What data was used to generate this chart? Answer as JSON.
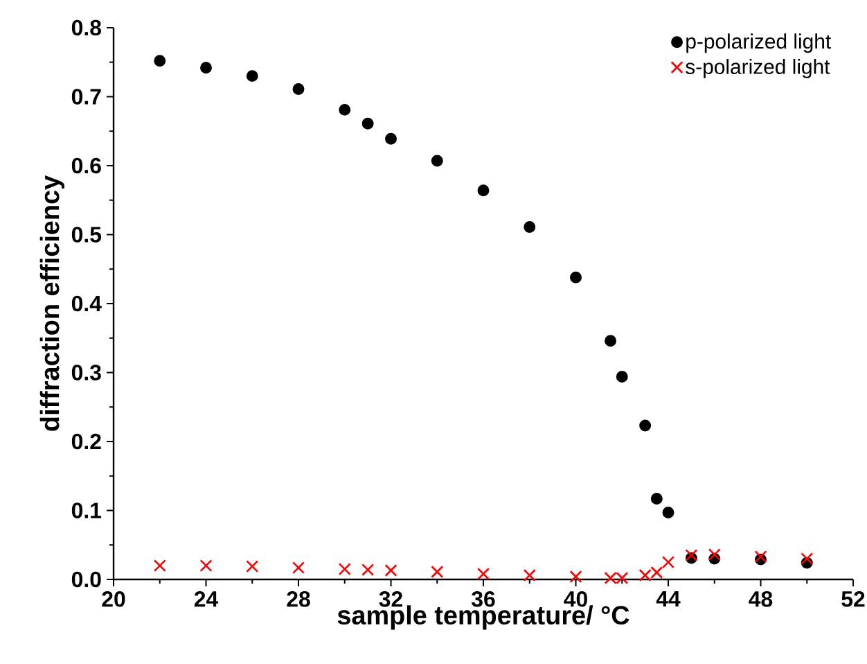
{
  "chart_data": {
    "type": "scatter",
    "xlabel": "sample temperature/ °C",
    "ylabel": "diffraction efficiency",
    "x": [
      22,
      24,
      26,
      28,
      30,
      31,
      32,
      34,
      36,
      38,
      40,
      41.5,
      42,
      43,
      43.5,
      44,
      45,
      46,
      48,
      50
    ],
    "series": [
      {
        "name": "p-polarized light",
        "color": "#000000",
        "marker": "circle",
        "values": [
          0.752,
          0.742,
          0.73,
          0.711,
          0.681,
          0.661,
          0.639,
          0.607,
          0.564,
          0.511,
          0.438,
          0.346,
          0.294,
          0.223,
          0.117,
          0.097,
          0.031,
          0.03,
          0.029,
          0.024
        ]
      },
      {
        "name": "s-polarized light",
        "color": "#ff0000",
        "marker": "cross",
        "values": [
          0.02,
          0.02,
          0.019,
          0.017,
          0.015,
          0.014,
          0.013,
          0.011,
          0.008,
          0.006,
          0.004,
          0.002,
          0.002,
          0.006,
          0.01,
          0.025,
          0.035,
          0.036,
          0.033,
          0.03
        ]
      }
    ],
    "xlim": [
      20,
      52
    ],
    "ylim": [
      0,
      0.8
    ],
    "xticks": [
      20,
      24,
      28,
      32,
      36,
      40,
      44,
      48,
      52
    ],
    "yticks": [
      {
        "value": 0,
        "label": "0.0"
      },
      0.1,
      0.2,
      0.3,
      0.4,
      0.5,
      0.6,
      0.7,
      0.8
    ],
    "legend": "top right"
  }
}
